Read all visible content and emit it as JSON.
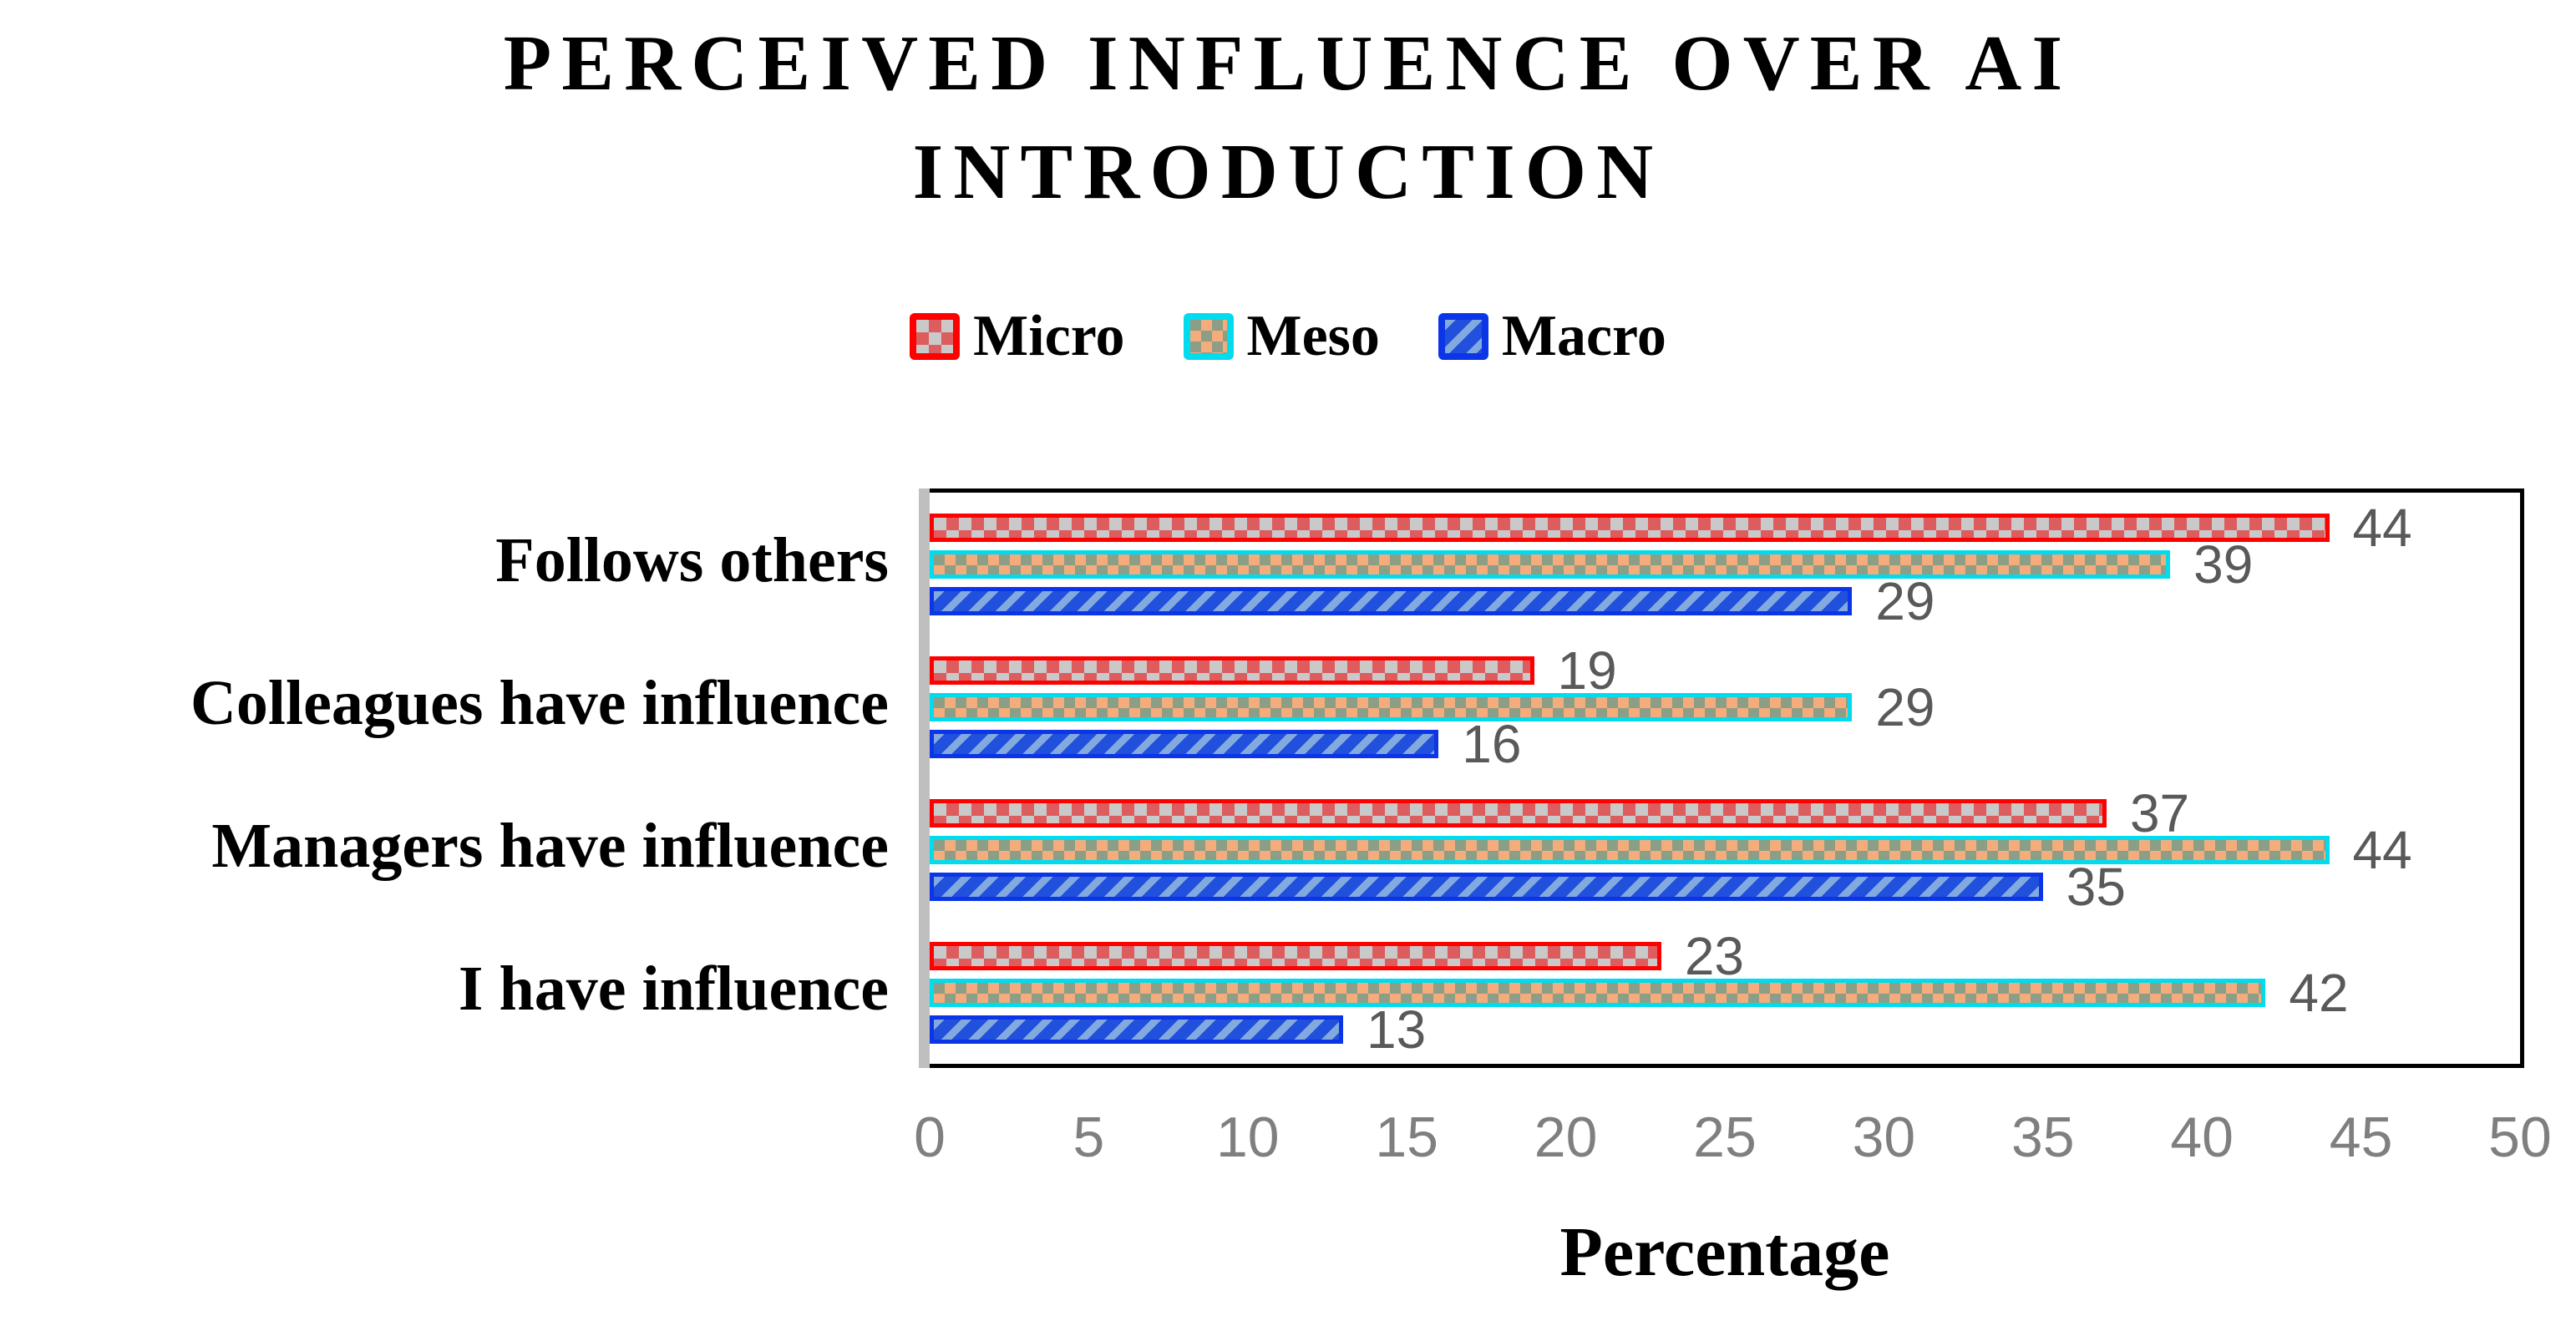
{
  "title_lines": [
    "PERCEIVED INFLUENCE OVER AI",
    "INTRODUCTION"
  ],
  "colors": {
    "background": "#ffffff",
    "title_text": "#000000",
    "category_text": "#000000",
    "data_label": "#595959",
    "tick_label": "#7f7f7f",
    "axis_line": "#bfbfbf",
    "plot_border": "#000000",
    "micro_border": "#ff0000",
    "micro_fill_a": "#dd5c5e",
    "micro_fill_b": "#c9c9c9",
    "meso_border": "#00dcee",
    "meso_fill_a": "#f4ac7c",
    "meso_fill_b": "#8c9e85",
    "macro_border": "#0b35e6",
    "macro_fill_a": "#2050dc",
    "macro_fill_b": "#82aadf"
  },
  "chart_data": {
    "type": "bar",
    "orientation": "horizontal",
    "title": "PERCEIVED INFLUENCE OVER AI INTRODUCTION",
    "categories": [
      "Follows others",
      "Colleagues have influence",
      "Managers have influence",
      "I have influence"
    ],
    "series": [
      {
        "name": "Micro",
        "pattern": "checkerboard-large",
        "values": [
          44,
          19,
          37,
          23
        ]
      },
      {
        "name": "Meso",
        "pattern": "checkerboard-small",
        "values": [
          39,
          29,
          44,
          42
        ]
      },
      {
        "name": "Macro",
        "pattern": "upward-diagonal-stripes",
        "values": [
          29,
          16,
          35,
          13
        ]
      }
    ],
    "xlabel": "Percentage",
    "ylabel": "",
    "xlim": [
      0,
      50
    ],
    "x_ticks": [
      0,
      5,
      10,
      15,
      20,
      25,
      30,
      35,
      40,
      45,
      50
    ],
    "value_labels_shown": true,
    "legend_position": "top-center",
    "grid": false
  }
}
